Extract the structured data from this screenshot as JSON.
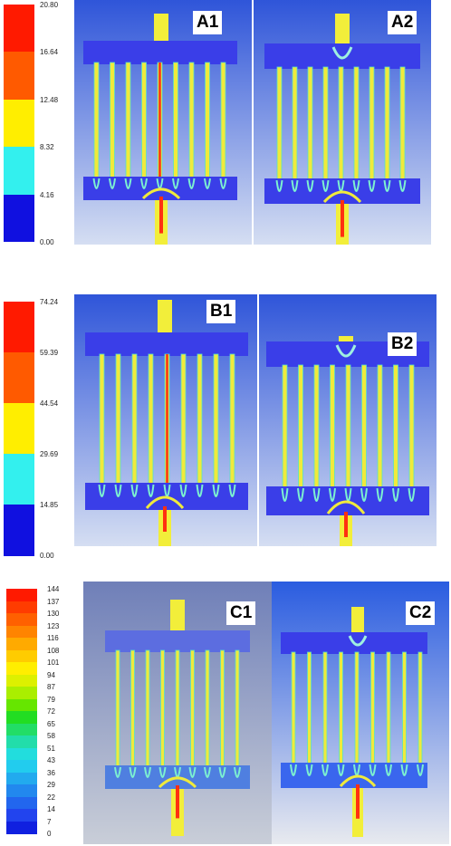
{
  "figure": {
    "panels": [
      {
        "id": "A",
        "legend_ticks": [
          "20.80",
          "16.64",
          "12.48",
          "8.32",
          "4.16",
          "0.00"
        ],
        "legend_colors": [
          "#ff1a00",
          "#ff5a00",
          "#ffee00",
          "#33f0ee",
          "#1010e0"
        ],
        "left_label": "A1",
        "right_label": "A2",
        "background_top": "#2f55d9",
        "background_bottom": "#d5def2"
      },
      {
        "id": "B",
        "legend_ticks": [
          "74.24",
          "59.39",
          "44.54",
          "29.69",
          "14.85",
          "0.00"
        ],
        "legend_colors": [
          "#ff1a00",
          "#ff5a00",
          "#ffee00",
          "#33f0ee",
          "#1010e0"
        ],
        "left_label": "B1",
        "right_label": "B2",
        "background_top": "#2f55d9",
        "background_bottom": "#d5def2"
      },
      {
        "id": "C",
        "legend_ticks": [
          "144",
          "137",
          "130",
          "123",
          "116",
          "108",
          "101",
          "94",
          "87",
          "79",
          "72",
          "65",
          "58",
          "51",
          "43",
          "36",
          "29",
          "22",
          "14",
          "7",
          "0"
        ],
        "legend_colors": [
          "#ff1a00",
          "#ff3c00",
          "#ff6000",
          "#ff8400",
          "#ffaa00",
          "#ffcc00",
          "#ffee00",
          "#ddf000",
          "#aaee00",
          "#66e600",
          "#22dd22",
          "#22dd66",
          "#22ddaa",
          "#22dddd",
          "#22ccee",
          "#22aaee",
          "#2288ee",
          "#2266ee",
          "#2244ee",
          "#1020e0"
        ],
        "left_label": "C1",
        "right_label": "C2",
        "background_top": "#2f55d9",
        "background_bottom": "#d5def2"
      }
    ]
  }
}
